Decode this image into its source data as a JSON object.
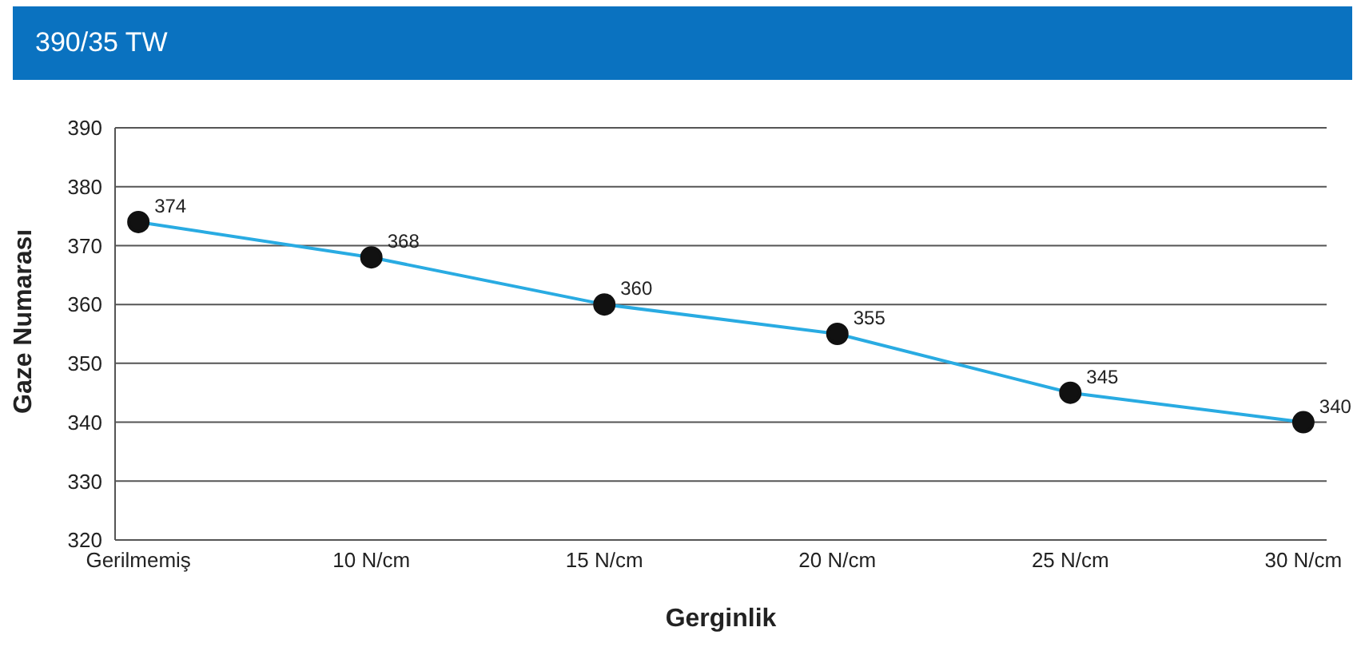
{
  "chart_data": {
    "type": "line",
    "title": "390/35 TW",
    "xlabel": "Gerginlik",
    "ylabel": "Gaze Numarası",
    "categories": [
      "Gerilmemiş",
      "10 N/cm",
      "15 N/cm",
      "20 N/cm",
      "25 N/cm",
      "30 N/cm"
    ],
    "series": [
      {
        "color": "#29abe2",
        "values": [
          374,
          368,
          360,
          355,
          345,
          340
        ]
      }
    ],
    "ylim": [
      320,
      390
    ],
    "yticks": [
      320,
      330,
      340,
      350,
      360,
      370,
      380,
      390
    ],
    "grid": "y",
    "marker": "circle",
    "data_labels": true,
    "legend": false
  }
}
